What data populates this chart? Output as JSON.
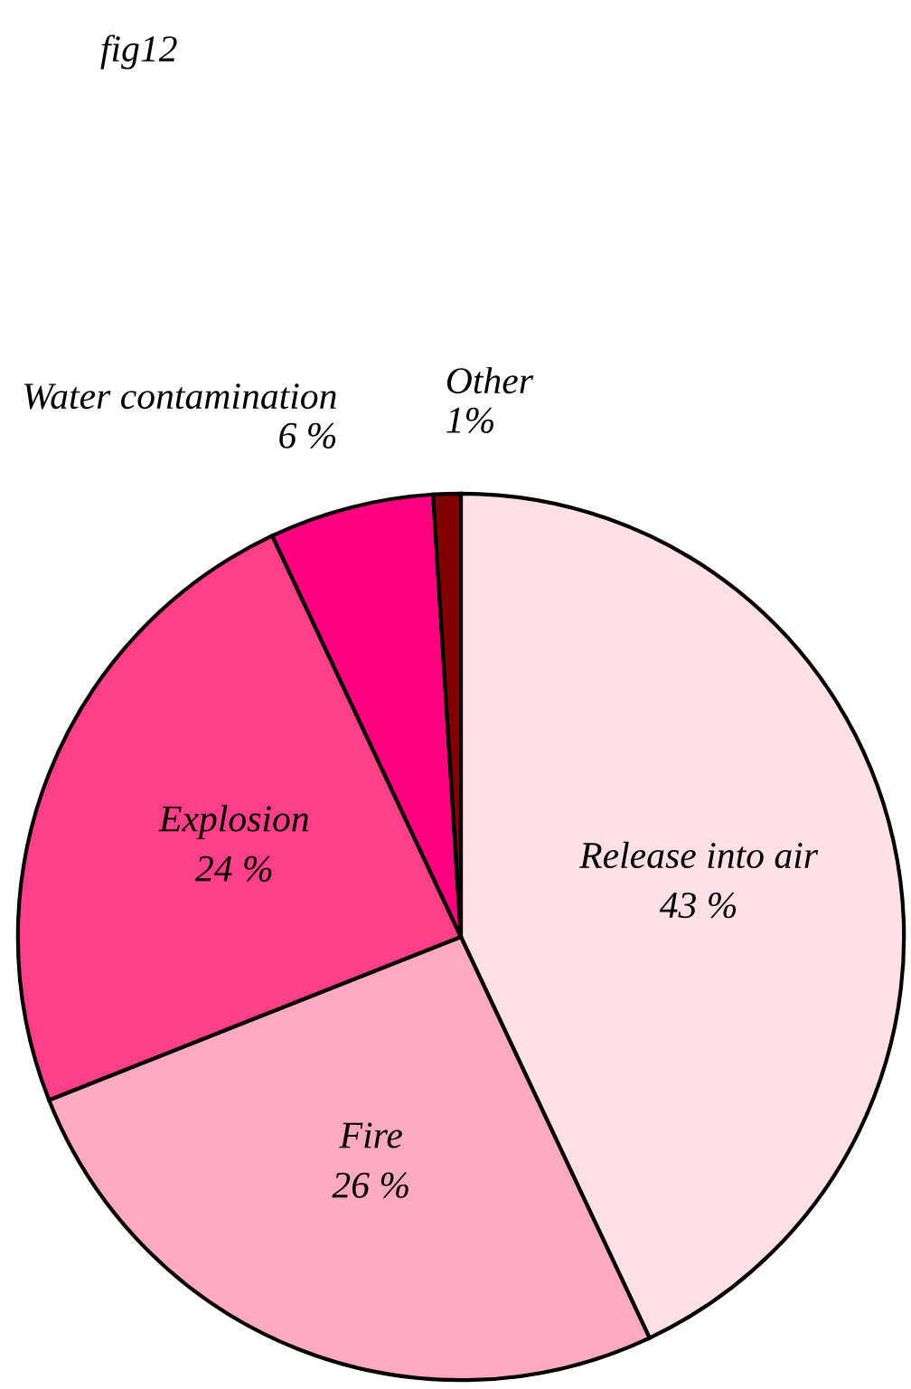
{
  "chart_data": {
    "type": "pie",
    "title": "fig12",
    "categories": [
      "Release into air",
      "Fire",
      "Explosion",
      "Water contamination",
      "Other"
    ],
    "values": [
      43,
      26,
      24,
      6,
      1
    ],
    "value_labels": [
      "43 %",
      "26 %",
      "24 %",
      "6 %",
      "1%"
    ],
    "colors": [
      "#ffe0e6",
      "#ffaac0",
      "#ff4088",
      "#ff0080",
      "#800000"
    ],
    "legend": false
  }
}
